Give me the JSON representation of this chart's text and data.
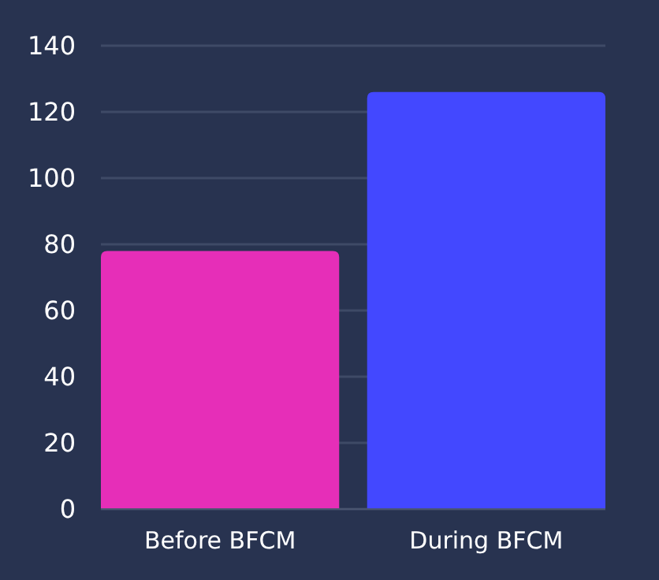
{
  "chart_data": {
    "type": "bar",
    "categories": [
      "Before BFCM",
      "During BFCM"
    ],
    "values": [
      78,
      126
    ],
    "colors": [
      "#e62eb8",
      "#4348ff"
    ],
    "ylim": [
      0,
      140
    ],
    "yticks": [
      0,
      20,
      40,
      60,
      80,
      100,
      120,
      140
    ],
    "grid": "y"
  }
}
